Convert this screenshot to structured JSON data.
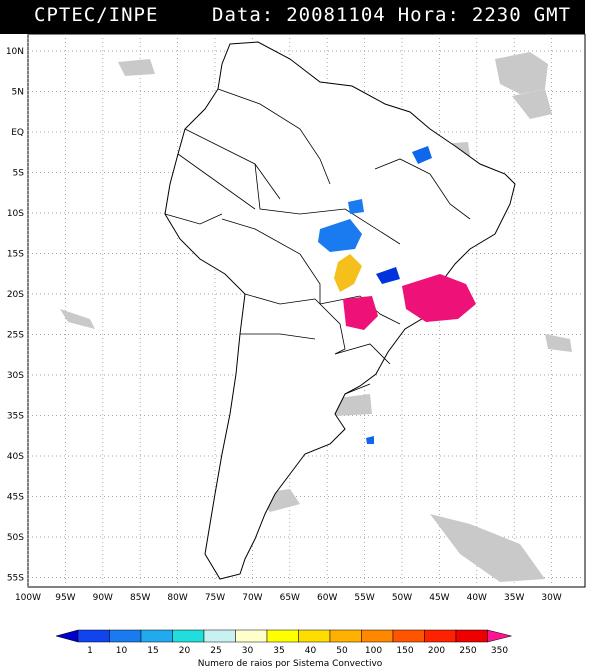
{
  "header": {
    "agency": "CPTEC/INPE",
    "date_label": "Data:",
    "date_value": "20081104",
    "hour_label": "Hora:",
    "hour_value": "2230",
    "timezone": "GMT"
  },
  "map": {
    "lat_labels": [
      "10N",
      "5N",
      "EQ",
      "5S",
      "10S",
      "15S",
      "20S",
      "25S",
      "30S",
      "35S",
      "40S",
      "45S",
      "50S",
      "55S"
    ],
    "lon_labels": [
      "100W",
      "95W",
      "90W",
      "85W",
      "80W",
      "75W",
      "70W",
      "65W",
      "60W",
      "55W",
      "50W",
      "45W",
      "40W",
      "35W",
      "30W"
    ]
  },
  "legend": {
    "title": "Numero de raios por Sistema Convectivo",
    "levels": [
      "1",
      "10",
      "15",
      "20",
      "25",
      "30",
      "35",
      "40",
      "50",
      "100",
      "150",
      "200",
      "250",
      "350"
    ],
    "colors": [
      "#0000cc",
      "#1144ee",
      "#1a7af0",
      "#22aaee",
      "#22dddd",
      "#c8f2f2",
      "#ffffcc",
      "#ffff00",
      "#ffdd00",
      "#ffb000",
      "#ff8800",
      "#ff5500",
      "#ff2200",
      "#ee0000",
      "#ff1493"
    ]
  },
  "systems": {
    "colors": {
      "low": "#1166ee",
      "blue": "#1a7af0",
      "yellow": "#f5bf1c",
      "magenta": "#ee1177",
      "dark": "#0033dd"
    }
  }
}
